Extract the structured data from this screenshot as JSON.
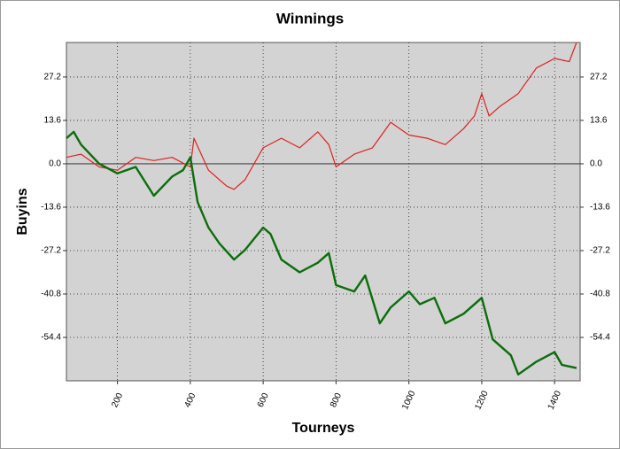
{
  "chart_data": {
    "type": "line",
    "title": "Winnings",
    "x_label": "Tourneys",
    "y_label": "Buyins",
    "xlim": [
      60,
      1470
    ],
    "ylim": [
      -68,
      38
    ],
    "xticks": [
      200,
      400,
      600,
      800,
      1000,
      1200,
      1400
    ],
    "yticks": [
      -54.4,
      -40.8,
      -27.2,
      -13.6,
      {
        "value": 0,
        "label": "0.0"
      },
      13.6,
      27.2
    ],
    "grid": true,
    "series": [
      {
        "color": "#e02020",
        "x": [
          60,
          100,
          150,
          200,
          250,
          300,
          350,
          400,
          410,
          450,
          500,
          520,
          550,
          600,
          650,
          700,
          750,
          780,
          800,
          850,
          900,
          950,
          1000,
          1050,
          1100,
          1150,
          1180,
          1200,
          1220,
          1250,
          1300,
          1350,
          1400,
          1440,
          1460
        ],
        "values": [
          2,
          3,
          -1,
          -2,
          2,
          1,
          2,
          -1,
          8,
          -2,
          -7,
          -8,
          -5,
          5,
          8,
          5,
          10,
          6,
          -1,
          3,
          5,
          13,
          9,
          8,
          6,
          11,
          15,
          22,
          15,
          18,
          22,
          30,
          33,
          32,
          38
        ]
      },
      {
        "color": "#0a6e0a",
        "x": [
          60,
          80,
          100,
          150,
          200,
          250,
          300,
          350,
          380,
          400,
          420,
          450,
          480,
          520,
          550,
          600,
          620,
          650,
          700,
          750,
          780,
          800,
          850,
          880,
          920,
          950,
          1000,
          1030,
          1070,
          1100,
          1150,
          1200,
          1230,
          1280,
          1300,
          1350,
          1400,
          1420,
          1460
        ],
        "values": [
          8,
          10,
          6,
          0,
          -3,
          -1,
          -10,
          -4,
          -2,
          2,
          -12,
          -20,
          -25,
          -30,
          -27,
          -20,
          -22,
          -30,
          -34,
          -31,
          -28,
          -38,
          -40,
          -35,
          -50,
          -45,
          -40,
          -44,
          -42,
          -50,
          -47,
          -42,
          -55,
          -60,
          -66,
          -62,
          -59,
          -63,
          -64
        ]
      }
    ]
  }
}
